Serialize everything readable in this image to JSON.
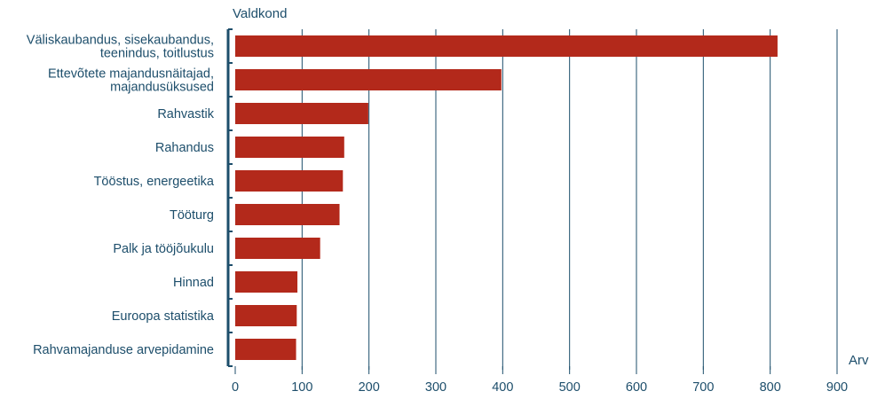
{
  "chart_data": {
    "type": "bar",
    "orientation": "horizontal",
    "ylabel": "Valdkond",
    "xlabel": "Arv",
    "categories": [
      [
        "Väliskaubandus, sisekaubandus,",
        "teenindus, toitlustus"
      ],
      [
        "Ettevõtete majandusnäitajad,",
        "majandusüksused"
      ],
      [
        "Rahvastik"
      ],
      [
        "Rahandus"
      ],
      [
        "Tööstus, energeetika"
      ],
      [
        "Tööturg"
      ],
      [
        "Palk ja tööjõukulu"
      ],
      [
        "Hinnad"
      ],
      [
        "Euroopa statistika"
      ],
      [
        "Rahvamajanduse arvepidamine"
      ]
    ],
    "values": [
      811,
      398,
      199,
      163,
      161,
      156,
      127,
      93,
      92,
      91
    ],
    "xlim": [
      0,
      900
    ],
    "xticks": [
      0,
      100,
      200,
      300,
      400,
      500,
      600,
      700,
      800,
      900
    ],
    "grid": "vertical",
    "colors": {
      "bar": "#b3291b",
      "grid": "#1d4e6b",
      "text": "#1d4e6b",
      "axis": "#1d4e6b"
    }
  }
}
